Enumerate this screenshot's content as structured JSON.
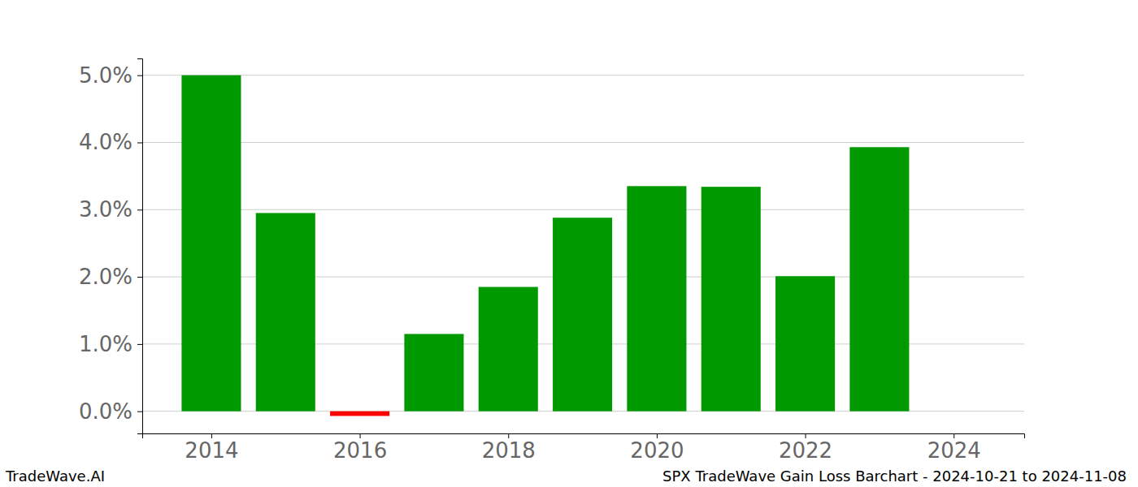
{
  "chart_data": {
    "type": "bar",
    "title": "SPX TradeWave Gain Loss Barchart - 2024-10-21 to 2024-11-08",
    "annotations": [
      "TradeWave.AI"
    ],
    "x": [
      2014,
      2015,
      2016,
      2017,
      2018,
      2019,
      2020,
      2021,
      2022,
      2023
    ],
    "values": [
      5.0,
      2.95,
      -0.07,
      1.15,
      1.85,
      2.88,
      3.35,
      3.34,
      2.01,
      3.93
    ],
    "colors": [
      "#009900",
      "#009900",
      "#ff0000",
      "#009900",
      "#009900",
      "#009900",
      "#009900",
      "#009900",
      "#009900",
      "#009900"
    ],
    "xlim": [
      2013.07,
      2024.95
    ],
    "xticks": [
      2014,
      2016,
      2018,
      2020,
      2022,
      2024
    ],
    "ylim": [
      -0.33,
      5.25
    ],
    "yticks": [
      {
        "value": 0,
        "label": "0.0%"
      },
      {
        "value": 1,
        "label": "1.0%"
      },
      {
        "value": 2,
        "label": "2.0%"
      },
      {
        "value": 3,
        "label": "3.0%"
      },
      {
        "value": 4,
        "label": "4.0%"
      },
      {
        "value": 5,
        "label": "5.0%"
      }
    ],
    "grid": true
  }
}
